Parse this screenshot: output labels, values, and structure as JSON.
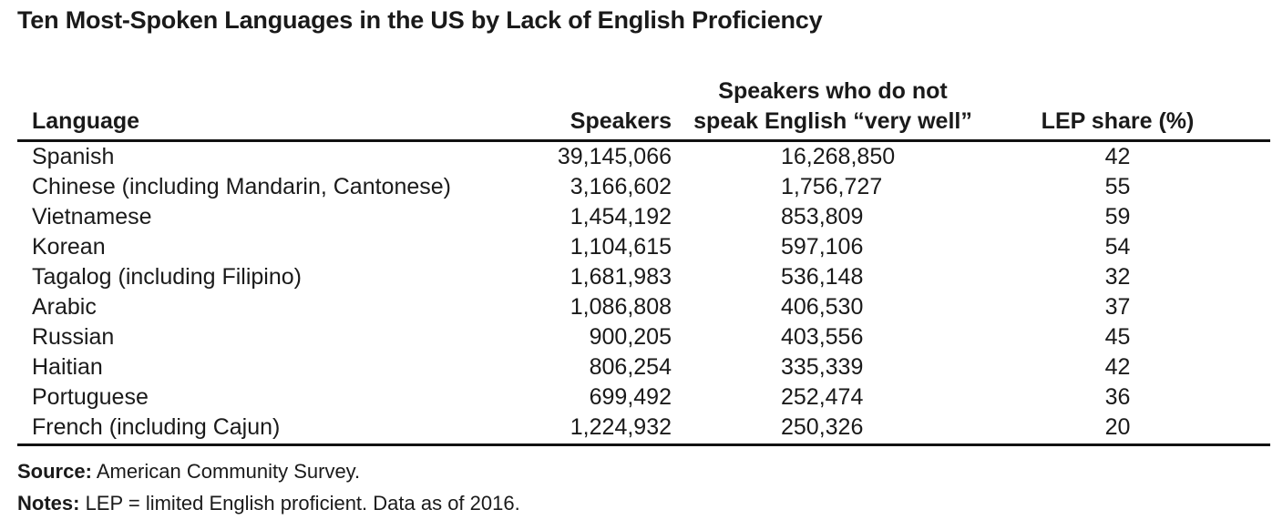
{
  "chart_data": {
    "type": "table",
    "title": "Ten Most-Spoken Languages in the US by Lack of English Proficiency",
    "columns": [
      "Language",
      "Speakers",
      "Speakers who do not",
      "speak English “very well”",
      "LEP share (%)"
    ],
    "rows": [
      {
        "language": "Spanish",
        "speakers": "39,145,066",
        "not_very_well": "16,268,850",
        "lep_share": "42"
      },
      {
        "language": "Chinese (including Mandarin, Cantonese)",
        "speakers": "3,166,602",
        "not_very_well": "1,756,727",
        "lep_share": "55"
      },
      {
        "language": "Vietnamese",
        "speakers": "1,454,192",
        "not_very_well": "853,809",
        "lep_share": "59"
      },
      {
        "language": "Korean",
        "speakers": "1,104,615",
        "not_very_well": "597,106",
        "lep_share": "54"
      },
      {
        "language": "Tagalog (including Filipino)",
        "speakers": "1,681,983",
        "not_very_well": "536,148",
        "lep_share": "32"
      },
      {
        "language": "Arabic",
        "speakers": "1,086,808",
        "not_very_well": "406,530",
        "lep_share": "37"
      },
      {
        "language": "Russian",
        "speakers": "900,205",
        "not_very_well": "403,556",
        "lep_share": "45"
      },
      {
        "language": "Haitian",
        "speakers": "806,254",
        "not_very_well": "335,339",
        "lep_share": "42"
      },
      {
        "language": "Portuguese",
        "speakers": "699,492",
        "not_very_well": "252,474",
        "lep_share": "36"
      },
      {
        "language": "French (including Cajun)",
        "speakers": "1,224,932",
        "not_very_well": "250,326",
        "lep_share": "20"
      }
    ]
  },
  "footer": {
    "source_label": "Source:",
    "source_text": " American Community Survey.",
    "notes_label": "Notes:",
    "notes_text": " LEP = limited English proficient. Data as of 2016."
  }
}
